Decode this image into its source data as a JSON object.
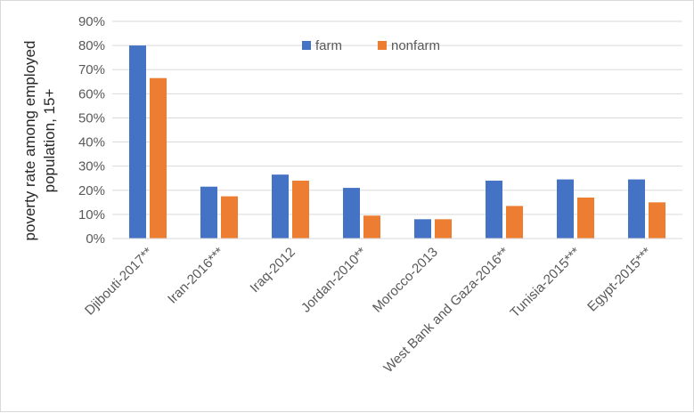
{
  "chart_data": {
    "type": "bar",
    "title": "",
    "xlabel": "",
    "ylabel": "poverty rate among employed population, 15+",
    "ylabel_lines": [
      "poverty rate among employed",
      "population, 15+"
    ],
    "ylim": [
      0,
      0.9
    ],
    "yticks": [
      0,
      0.1,
      0.2,
      0.3,
      0.4,
      0.5,
      0.6,
      0.7,
      0.8,
      0.9
    ],
    "ytick_labels": [
      "0%",
      "10%",
      "20%",
      "30%",
      "40%",
      "50%",
      "60%",
      "70%",
      "80%",
      "90%"
    ],
    "grid": true,
    "legend_position": "top-center",
    "categories": [
      "Djibouti-2017**",
      "Iran-2016***",
      "Iraq-2012",
      "Jordan-2010**",
      "Morocco-2013",
      "West Bank and Gaza-2016**",
      "Tunisia-2015***",
      "Egypt-2015***"
    ],
    "series": [
      {
        "name": "farm",
        "color": "#4472c4",
        "values": [
          0.8,
          0.215,
          0.265,
          0.21,
          0.08,
          0.24,
          0.245,
          0.245
        ]
      },
      {
        "name": "nonfarm",
        "color": "#ed7d31",
        "values": [
          0.665,
          0.175,
          0.24,
          0.095,
          0.08,
          0.135,
          0.17,
          0.15
        ]
      }
    ]
  }
}
